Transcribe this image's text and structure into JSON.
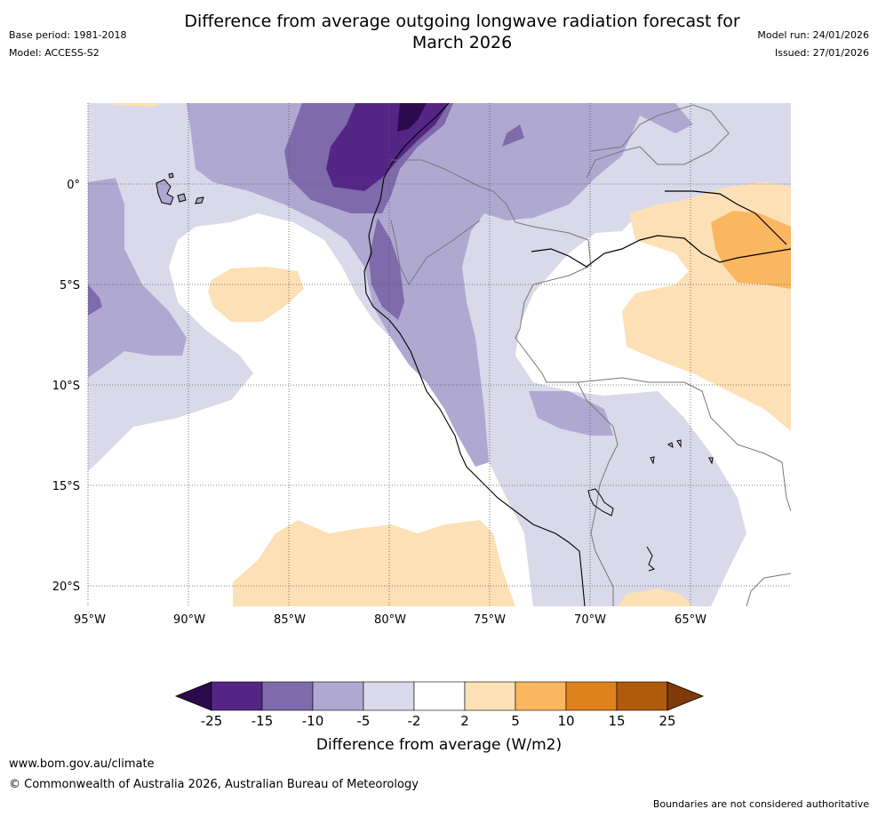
{
  "header": {
    "title_line1": "Difference from average outgoing longwave radiation forecast for",
    "title_line2": "March 2026",
    "base_period": "Base period: 1981-2018",
    "model": "Model: ACCESS-S2",
    "model_run": "Model run: 24/01/2026",
    "issued": "Issued: 27/01/2026"
  },
  "map": {
    "lat_labels": [
      "0°",
      "5°S",
      "10°S",
      "15°S",
      "20°S"
    ],
    "lon_labels": [
      "95°W",
      "90°W",
      "85°W",
      "80°W",
      "75°W",
      "70°W",
      "65°W"
    ]
  },
  "legend": {
    "title": "Difference from average (W/m2)",
    "ticks": [
      "-25",
      "-15",
      "-10",
      "-5",
      "-2",
      "2",
      "5",
      "10",
      "15",
      "25"
    ],
    "colors": [
      "#2d0a4e",
      "#552586",
      "#7f6aab",
      "#afa8d1",
      "#d9d9ea",
      "#ffffff",
      "#fde0b5",
      "#fbb660",
      "#e0821c",
      "#b05a0b",
      "#7e3b08"
    ]
  },
  "footer": {
    "url": "www.bom.gov.au/climate",
    "copyright": "© Commonwealth of Australia 2026, Australian Bureau of Meteorology",
    "disclaimer": "Boundaries are not considered authoritative"
  }
}
